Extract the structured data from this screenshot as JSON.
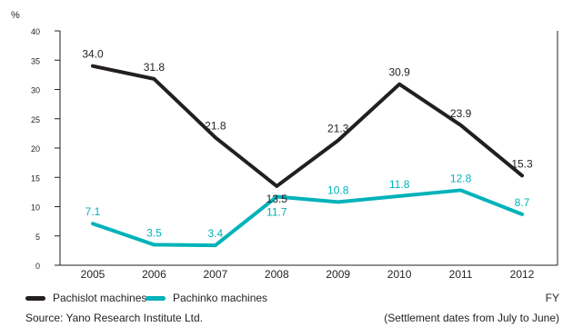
{
  "chart_data": {
    "type": "line",
    "categories": [
      "2005",
      "2006",
      "2007",
      "2008",
      "2009",
      "2010",
      "2011",
      "2012"
    ],
    "ylim": [
      0,
      40
    ],
    "yticks": [
      0,
      5,
      10,
      15,
      20,
      25,
      30,
      35,
      40
    ],
    "ylabel": "%",
    "xlabel": "FY",
    "grid": false,
    "legend_position": "bottom-left",
    "series": [
      {
        "name": "Pachislot machines",
        "color": "#231f20",
        "values": [
          34.0,
          31.8,
          21.8,
          13.5,
          21.3,
          30.9,
          23.9,
          15.3
        ],
        "labels": [
          "34.0",
          "31.8",
          "21.8",
          "13.5",
          "21.3",
          "30.9",
          "23.9",
          "15.3"
        ]
      },
      {
        "name": "Pachinko machines",
        "color": "#00b2b9",
        "values": [
          7.1,
          3.5,
          3.4,
          11.7,
          10.8,
          11.8,
          12.8,
          8.7
        ],
        "labels": [
          "7.1",
          "3.5",
          "3.4",
          "11.7",
          "10.8",
          "11.8",
          "12.8",
          "8.7"
        ]
      }
    ]
  },
  "source": "Source: Yano Research Institute Ltd.",
  "note": "(Settlement dates from July to June)"
}
